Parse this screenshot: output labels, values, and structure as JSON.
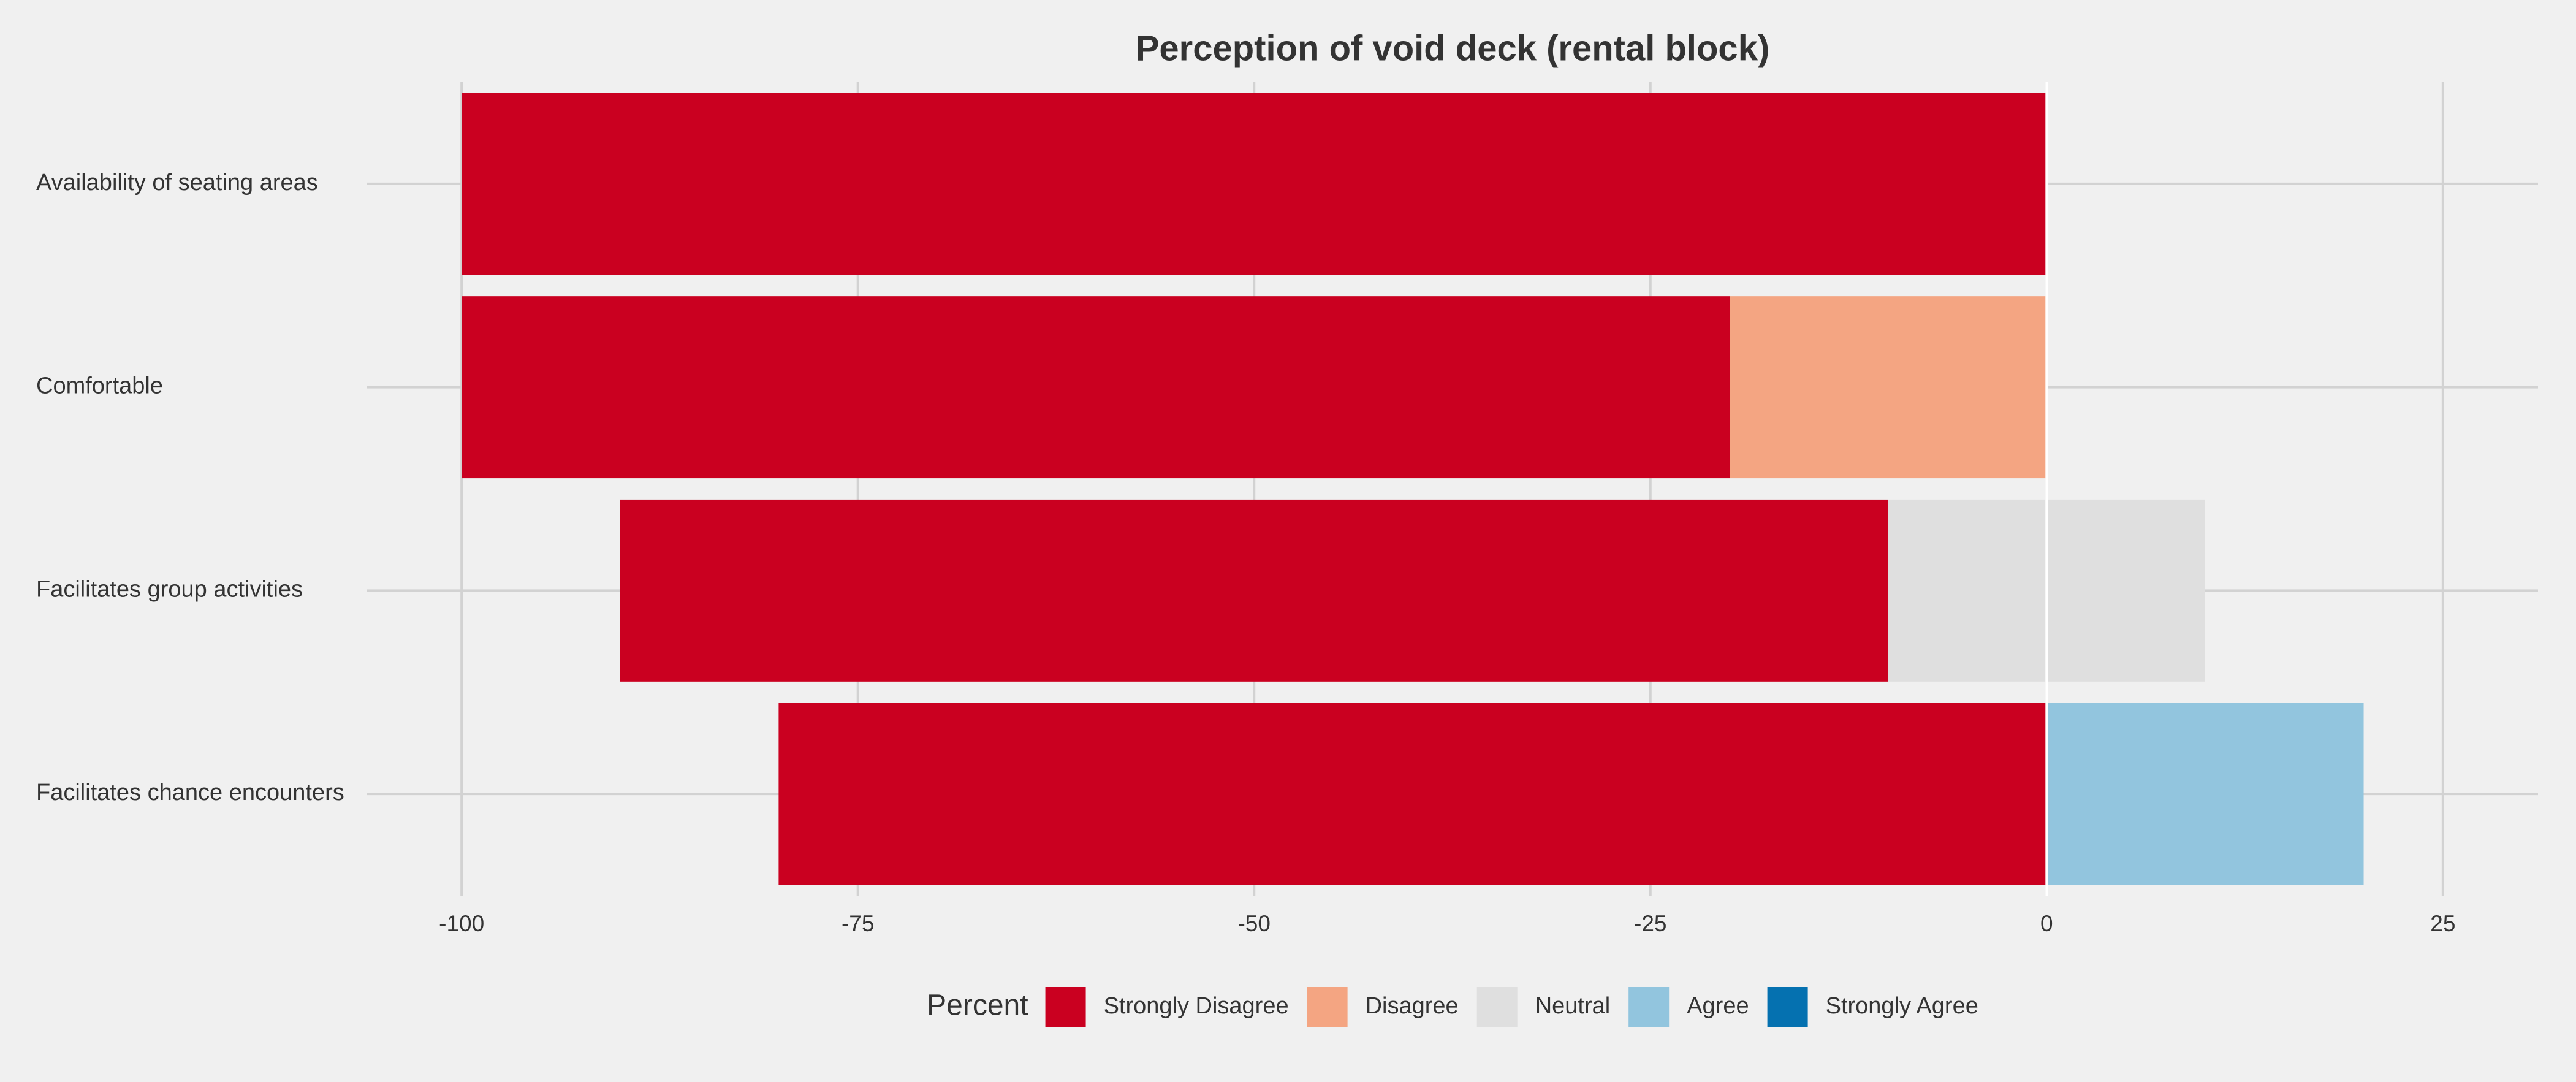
{
  "chart_data": {
    "type": "diverging_bar",
    "title": "Perception of void deck (rental block)",
    "categories": [
      "Availability of seating areas",
      "Comfortable",
      "Facilitates group activities",
      "Facilitates chance encounters"
    ],
    "legend_title": "Percent",
    "neutral": "Neutral",
    "series": [
      {
        "name": "Strongly Disagree",
        "color": "#ca0020",
        "values": [
          100,
          80,
          80,
          80
        ]
      },
      {
        "name": "Disagree",
        "color": "#f4a582",
        "values": [
          0,
          20,
          0,
          0
        ]
      },
      {
        "name": "Neutral",
        "color": "#dfdfdf",
        "values": [
          0,
          0,
          20,
          0
        ]
      },
      {
        "name": "Agree",
        "color": "#92c5de",
        "values": [
          0,
          0,
          0,
          20
        ]
      },
      {
        "name": "Strongly Agree",
        "color": "#0571b0",
        "values": [
          0,
          0,
          0,
          0
        ]
      }
    ],
    "xlim": [
      -106,
      31
    ],
    "xticks": [
      -100,
      -75,
      -50,
      -25,
      0,
      25
    ],
    "grid": true,
    "legend": "bottom"
  }
}
